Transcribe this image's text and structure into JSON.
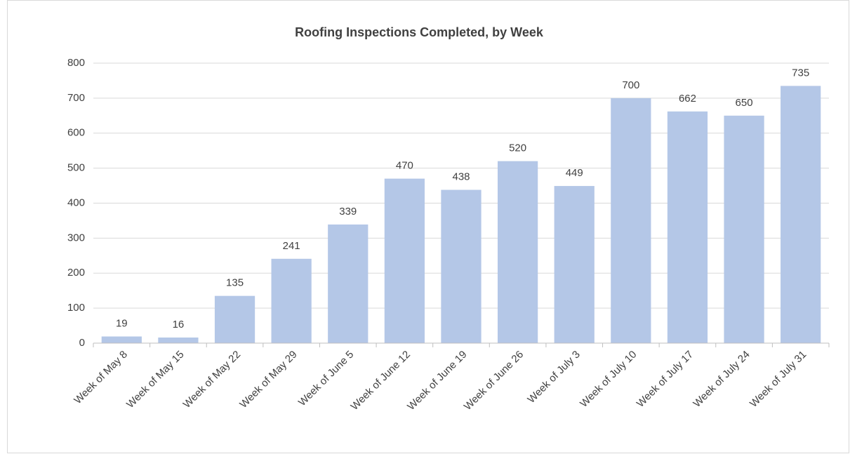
{
  "chart_data": {
    "type": "bar",
    "title": "Roofing Inspections Completed, by Week",
    "categories": [
      "Week of May 8",
      "Week of May 15",
      "Week of May 22",
      "Week of May 29",
      "Week of June 5",
      "Week of June 12",
      "Week of June 19",
      "Week of June 26",
      "Week of July 3",
      "Week of July 10",
      "Week of July 17",
      "Week of July 24",
      "Week of July 31"
    ],
    "values": [
      19,
      16,
      135,
      241,
      339,
      470,
      438,
      520,
      449,
      700,
      662,
      650,
      735
    ],
    "color": "#b4c7e7",
    "ylim": [
      0,
      800
    ],
    "yticks": [
      0,
      100,
      200,
      300,
      400,
      500,
      600,
      700,
      800
    ],
    "grid": true
  }
}
